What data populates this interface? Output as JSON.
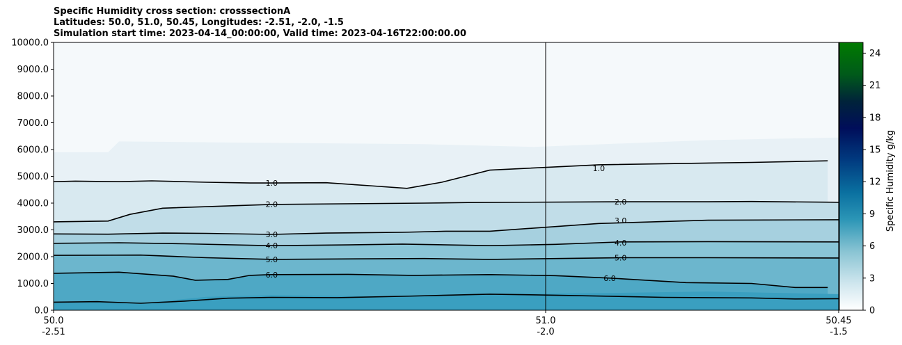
{
  "chart_data": {
    "type": "contour",
    "title_lines": [
      "Specific Humidity cross section: crosssectionA",
      "Latitudes: 50.0, 51.0, 50.45, Longitudes: -2.51, -2.0, -1.5",
      "Simulation start time: 2023-04-14_00:00:00, Valid time: 2023-04-16T22:00:00.00"
    ],
    "x_ticks": [
      {
        "lat": "50.0",
        "lon": "-2.51",
        "pos": 0
      },
      {
        "lat": "51.0",
        "lon": "-2.0",
        "pos": 1
      },
      {
        "lat": "50.45",
        "lon": "-1.5",
        "pos": 2
      }
    ],
    "y_ticks": [
      "0.0",
      "1000.0",
      "2000.0",
      "3000.0",
      "4000.0",
      "5000.0",
      "6000.0",
      "7000.0",
      "8000.0",
      "9000.0",
      "10000.0"
    ],
    "ylim": [
      0,
      10000
    ],
    "xlim": [
      0,
      2
    ],
    "colorbar": {
      "label": "Specific Humidity g/kg",
      "ticks": [
        "0",
        "3",
        "6",
        "9",
        "12",
        "15",
        "18",
        "21",
        "24"
      ],
      "range": [
        0,
        25
      ],
      "colormap": "ocean_r"
    },
    "contours": [
      {
        "level": "1.0",
        "points": [
          [
            0,
            4800
          ],
          [
            0.1,
            4820
          ],
          [
            0.3,
            4800
          ],
          [
            0.45,
            4830
          ],
          [
            0.7,
            4780
          ],
          [
            0.9,
            4750
          ],
          [
            1.0,
            4750
          ],
          [
            1.25,
            4760
          ],
          [
            1.45,
            4650
          ],
          [
            1.62,
            4550
          ],
          [
            1.78,
            4780
          ],
          [
            2.0,
            5230
          ],
          [
            2.5,
            5430
          ],
          [
            3.2,
            5520
          ],
          [
            3.55,
            5580
          ]
        ],
        "label_pos": [
          1.0,
          4750,
          0
        ],
        "label_pos2": [
          2.5,
          5300,
          0
        ]
      },
      {
        "level": "2.0",
        "points": [
          [
            0,
            3300
          ],
          [
            0.25,
            3330
          ],
          [
            0.35,
            3580
          ],
          [
            0.5,
            3810
          ],
          [
            1.0,
            3950
          ],
          [
            1.7,
            4000
          ],
          [
            1.9,
            4020
          ],
          [
            2.6,
            4050
          ],
          [
            3.0,
            4050
          ],
          [
            3.2,
            4060
          ],
          [
            3.6,
            4030
          ]
        ],
        "label_pos": [
          1.0,
          3960,
          0
        ],
        "label_pos2": [
          2.6,
          4050,
          0
        ]
      },
      {
        "level": "3.0",
        "points": [
          [
            0,
            2850
          ],
          [
            0.25,
            2840
          ],
          [
            0.5,
            2880
          ],
          [
            0.7,
            2870
          ],
          [
            1.0,
            2830
          ],
          [
            1.25,
            2880
          ],
          [
            1.6,
            2910
          ],
          [
            1.8,
            2950
          ],
          [
            2.0,
            2950
          ],
          [
            2.5,
            3240
          ],
          [
            3.0,
            3360
          ],
          [
            3.6,
            3380
          ]
        ],
        "label_pos": [
          1.0,
          2830,
          0
        ],
        "label_pos2": [
          2.6,
          3350,
          0
        ]
      },
      {
        "level": "4.0",
        "points": [
          [
            0,
            2500
          ],
          [
            0.3,
            2520
          ],
          [
            0.6,
            2480
          ],
          [
            1.0,
            2410
          ],
          [
            1.35,
            2440
          ],
          [
            1.6,
            2470
          ],
          [
            2.0,
            2410
          ],
          [
            2.3,
            2460
          ],
          [
            2.6,
            2550
          ],
          [
            3.0,
            2560
          ],
          [
            3.6,
            2550
          ]
        ],
        "label_pos": [
          1.0,
          2420,
          0
        ],
        "label_pos2": [
          2.6,
          2520,
          0
        ]
      },
      {
        "level": "5.0",
        "points": [
          [
            0,
            2050
          ],
          [
            0.4,
            2060
          ],
          [
            0.7,
            1960
          ],
          [
            1.0,
            1900
          ],
          [
            1.45,
            1920
          ],
          [
            1.7,
            1930
          ],
          [
            2.0,
            1900
          ],
          [
            2.4,
            1940
          ],
          [
            2.6,
            1960
          ],
          [
            3.0,
            1960
          ],
          [
            3.6,
            1950
          ]
        ],
        "label_pos": [
          1.0,
          1900,
          0
        ],
        "label_pos2": [
          2.6,
          1960,
          0
        ]
      },
      {
        "level": "6.0",
        "points": [
          [
            0,
            1380
          ],
          [
            0.3,
            1420
          ],
          [
            0.55,
            1270
          ],
          [
            0.65,
            1120
          ],
          [
            0.8,
            1150
          ],
          [
            0.9,
            1300
          ],
          [
            1.0,
            1330
          ],
          [
            1.35,
            1340
          ],
          [
            1.65,
            1300
          ],
          [
            2.0,
            1330
          ],
          [
            2.3,
            1290
          ],
          [
            2.55,
            1200
          ],
          [
            2.9,
            1030
          ],
          [
            3.2,
            1000
          ],
          [
            3.4,
            850
          ],
          [
            3.55,
            850
          ]
        ],
        "label_pos": [
          1.0,
          1330,
          0
        ],
        "label_pos2": [
          2.55,
          1200,
          0
        ]
      }
    ],
    "domain_color": "#a9d3e0"
  }
}
